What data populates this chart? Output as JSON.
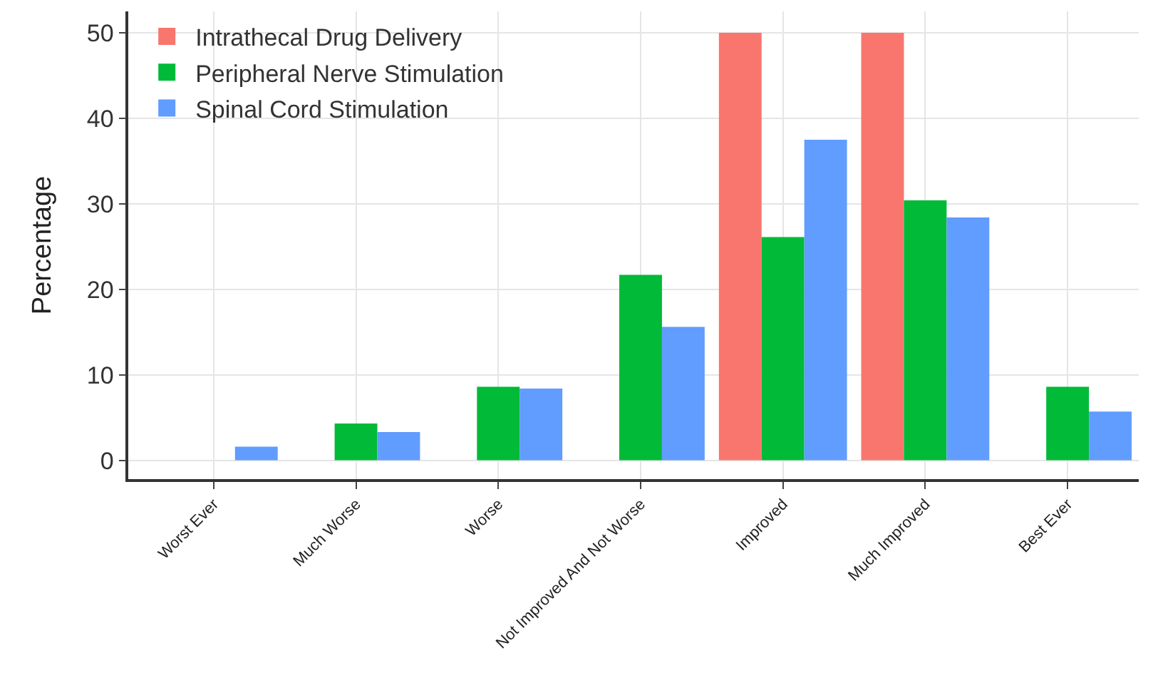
{
  "chart_data": {
    "type": "bar",
    "ylabel": "Percentage",
    "categories": [
      "Worst Ever",
      "Much Worse",
      "Worse",
      "Not Improved And Not Worse",
      "Improved",
      "Much Improved",
      "Best Ever"
    ],
    "series": [
      {
        "name": "Intrathecal Drug Delivery",
        "color": "#f8766d",
        "values": [
          0,
          0,
          0,
          0,
          50,
          50,
          0
        ]
      },
      {
        "name": "Peripheral Nerve Stimulation",
        "color": "#00ba38",
        "values": [
          0,
          4.3,
          8.6,
          21.7,
          26.1,
          30.4,
          8.6
        ]
      },
      {
        "name": "Spinal Cord Stimulation",
        "color": "#619cff",
        "values": [
          1.6,
          3.3,
          8.4,
          15.6,
          37.5,
          28.4,
          5.7
        ]
      }
    ],
    "ylim": [
      -2.2,
      52.5
    ],
    "yticks": [
      0,
      10,
      20,
      30,
      40,
      50
    ],
    "grid": true,
    "legend": "top left"
  }
}
